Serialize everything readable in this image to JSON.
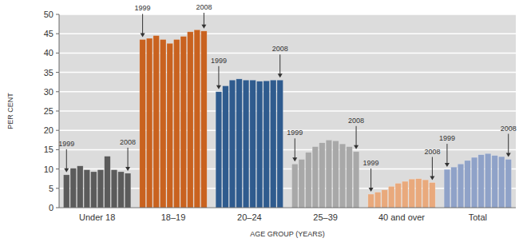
{
  "chart_data": {
    "type": "bar",
    "y_label": "PER CENT",
    "x_label": "AGE GROUP (YEARS)",
    "categories": [
      "Under 18",
      "18–19",
      "20–24",
      "25–39",
      "40 and over",
      "Total"
    ],
    "colors": [
      "#5b5b5b",
      "#c9621f",
      "#2f5b8e",
      "#a8a8a8",
      "#e9a97c",
      "#8fa2c8"
    ],
    "values": [
      [
        8.5,
        10.2,
        10.8,
        9.8,
        9.3,
        9.8,
        13.3,
        9.8,
        9.3,
        8.9
      ],
      [
        43.5,
        43.8,
        44.5,
        43.5,
        42.5,
        43.5,
        44.3,
        45.5,
        46.0,
        45.7
      ],
      [
        30.0,
        31.5,
        33.0,
        33.3,
        33.0,
        33.0,
        32.7,
        32.8,
        33.0,
        33.0
      ],
      [
        11.3,
        12.5,
        14.3,
        15.8,
        16.8,
        17.5,
        17.3,
        16.5,
        15.8,
        14.5
      ],
      [
        3.5,
        4.0,
        4.6,
        5.5,
        6.3,
        6.8,
        7.4,
        7.5,
        7.2,
        6.5
      ],
      [
        9.9,
        10.5,
        11.3,
        12.2,
        13.0,
        13.7,
        14.0,
        13.5,
        13.2,
        12.5
      ]
    ],
    "annotations": [
      {
        "text": "1999",
        "index": 0
      },
      {
        "text": "2008",
        "index": 9
      }
    ],
    "ylim": [
      0,
      50
    ],
    "yticks": [
      0,
      5,
      10,
      15,
      20,
      25,
      30,
      35,
      40,
      45,
      50
    ],
    "grid": true
  }
}
